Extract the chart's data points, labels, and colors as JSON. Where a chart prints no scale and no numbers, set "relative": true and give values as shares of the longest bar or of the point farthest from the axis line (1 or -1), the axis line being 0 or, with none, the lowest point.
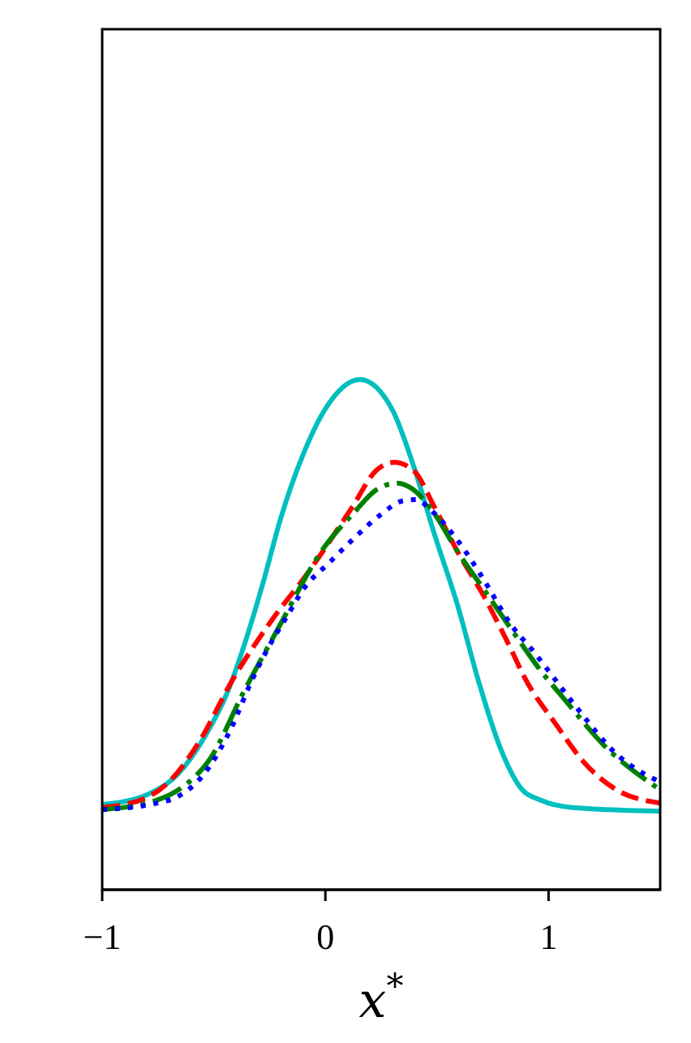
{
  "chart_data": {
    "type": "line",
    "relative": true,
    "xlabel": "x$^{*}$",
    "xlim": [
      -1,
      1.5
    ],
    "xticks": [
      -1,
      0,
      1
    ],
    "tick_labels": "x",
    "series": [
      {
        "color": "#00bfbf",
        "line_style": "solid",
        "x": [
          -1,
          -0.8,
          -0.66,
          -0.535,
          -0.44,
          -0.353,
          -0.281,
          -0.201,
          -0.099,
          -0.004,
          0.155,
          0.301,
          0.395,
          0.49,
          0.592,
          0.686,
          0.781,
          0.882,
          0.962,
          1.108,
          1.5
        ],
        "values": [
          0.167,
          0.186,
          0.227,
          0.304,
          0.386,
          0.494,
          0.599,
          0.727,
          0.854,
          0.94,
          1,
          0.94,
          0.831,
          0.695,
          0.558,
          0.409,
          0.281,
          0.196,
          0.176,
          0.161,
          0.154
        ]
      },
      {
        "color": "#ff0000",
        "line_style": "dashed",
        "x": [
          -1,
          -0.804,
          -0.709,
          -0.564,
          -0.419,
          -0.244,
          -0.077,
          0.12,
          0.228,
          0.308,
          0.395,
          0.49,
          0.592,
          0.708,
          0.831,
          0.89,
          1.035,
          1.158,
          1.304,
          1.5
        ],
        "values": [
          0.161,
          0.18,
          0.208,
          0.291,
          0.409,
          0.526,
          0.622,
          0.75,
          0.822,
          0.838,
          0.822,
          0.749,
          0.663,
          0.577,
          0.472,
          0.418,
          0.323,
          0.25,
          0.196,
          0.17
        ]
      },
      {
        "color": "#008000",
        "line_style": "dashdot",
        "x": [
          -1,
          -0.753,
          -0.658,
          -0.513,
          -0.368,
          -0.222,
          -0.004,
          0.126,
          0.228,
          0.323,
          0.395,
          0.49,
          0.592,
          0.708,
          0.85,
          0.962,
          1.064,
          1.253,
          1.5
        ],
        "values": [
          0.157,
          0.176,
          0.196,
          0.259,
          0.386,
          0.504,
          0.672,
          0.738,
          0.784,
          0.797,
          0.784,
          0.736,
          0.663,
          0.59,
          0.5,
          0.431,
          0.377,
          0.281,
          0.196
        ]
      },
      {
        "color": "#0000ff",
        "line_style": "dotted",
        "x": [
          -1,
          -0.753,
          -0.673,
          -0.549,
          -0.426,
          -0.331,
          -0.259,
          -0.172,
          -0.092,
          0.017,
          0.126,
          0.25,
          0.344,
          0.41,
          0.468,
          0.592,
          0.708,
          0.831,
          0.94,
          0.991,
          1.137,
          1.304,
          1.5
        ],
        "values": [
          0.157,
          0.17,
          0.18,
          0.224,
          0.313,
          0.409,
          0.472,
          0.536,
          0.593,
          0.641,
          0.688,
          0.736,
          0.762,
          0.765,
          0.746,
          0.685,
          0.609,
          0.52,
          0.463,
          0.434,
          0.351,
          0.266,
          0.211
        ]
      }
    ]
  }
}
